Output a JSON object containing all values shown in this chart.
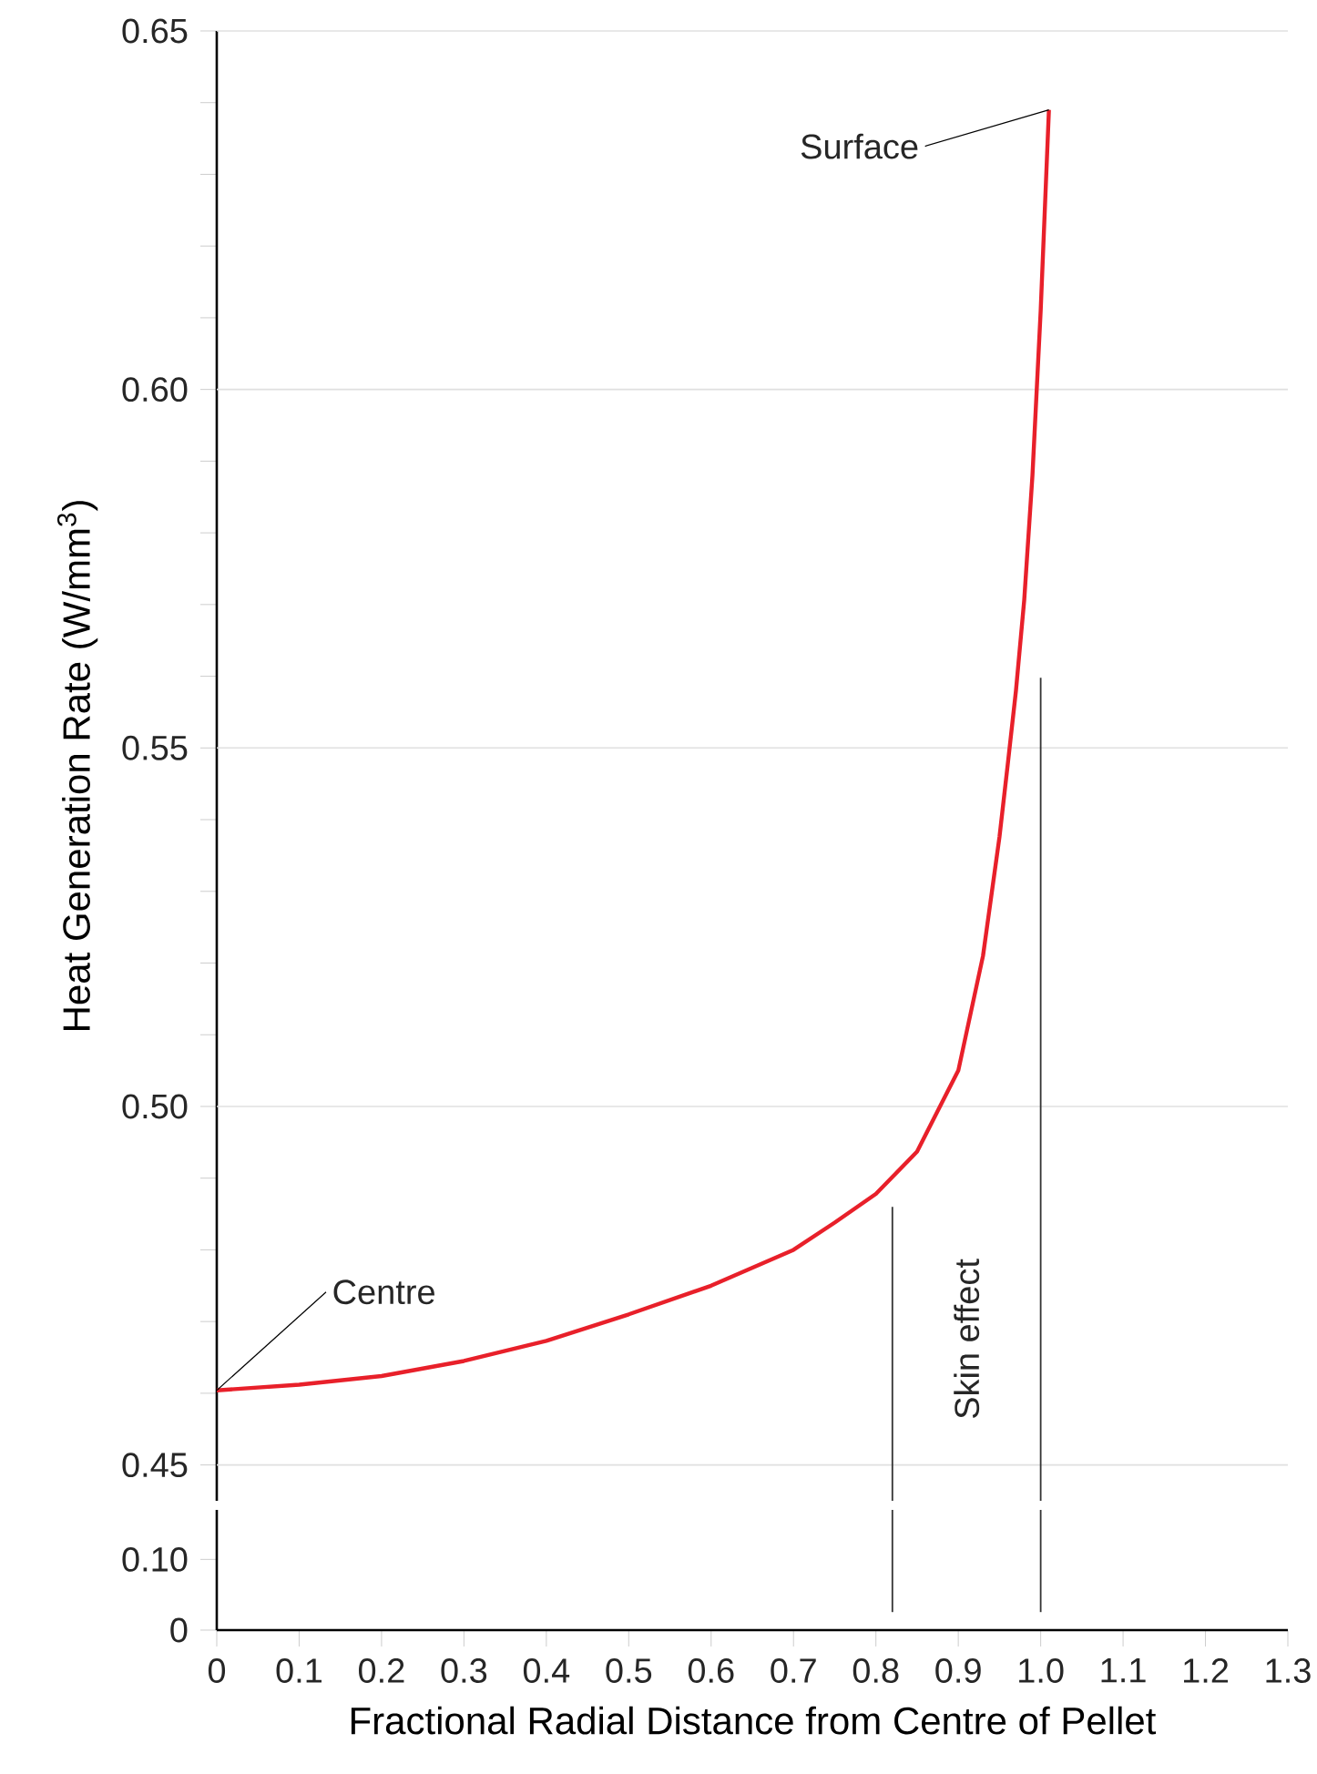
{
  "chart_data": [
    {
      "type": "line",
      "ylabel": "Heat Generation Rate (W/mm$^{3}$)",
      "series": [
        {
          "color": "#e8202a",
          "x": [
            0,
            0.1,
            0.2,
            0.3,
            0.4,
            0.5,
            0.6,
            0.7,
            0.75,
            0.8,
            0.85,
            0.88,
            0.9,
            0.93,
            0.95,
            0.96,
            0.97,
            0.98,
            0.99,
            1.0,
            1.01
          ],
          "values": [
            0.4604,
            0.4612,
            0.4624,
            0.4645,
            0.4673,
            0.471,
            0.475,
            0.48,
            0.4838,
            0.4878,
            0.4937,
            0.5005,
            0.505,
            0.521,
            0.5376,
            0.5477,
            0.558,
            0.5706,
            0.588,
            0.611,
            0.639
          ]
        }
      ],
      "xlim": [
        0,
        1.3
      ],
      "ylim": [
        0.445,
        0.65
      ],
      "yticks": [
        0.45,
        {
          "value": 0.46,
          "label": null
        },
        {
          "value": 0.47,
          "label": null
        },
        {
          "value": 0.48,
          "label": null
        },
        {
          "value": 0.49,
          "label": null
        },
        {
          "value": 0.5,
          "label": "0.50"
        },
        {
          "value": 0.51,
          "label": null
        },
        {
          "value": 0.52,
          "label": null
        },
        {
          "value": 0.53,
          "label": null
        },
        {
          "value": 0.54,
          "label": null
        },
        0.55,
        {
          "value": 0.56,
          "label": null
        },
        {
          "value": 0.57,
          "label": null
        },
        {
          "value": 0.58,
          "label": null
        },
        {
          "value": 0.59,
          "label": null
        },
        {
          "value": 0.6,
          "label": "0.60"
        },
        {
          "value": 0.61,
          "label": null
        },
        {
          "value": 0.62,
          "label": null
        },
        {
          "value": 0.63,
          "label": null
        },
        {
          "value": 0.64,
          "label": null
        },
        0.65
      ],
      "grid": "y",
      "tick_labels": "y",
      "line_style": "solid",
      "annotations": [
        {
          "text": "Surface",
          "x": 1.01,
          "y": 0.639
        },
        {
          "text": "Centre",
          "x": 0,
          "y": 0.4604
        },
        "Skin effect"
      ],
      "ref_lines": [
        {
          "axis": "x",
          "value": 0.82,
          "color": "#333333"
        },
        {
          "axis": "x",
          "value": 1.0,
          "color": "#333333"
        }
      ]
    },
    {
      "type": "line",
      "xlabel": "Fractional Radial Distance from Centre of Pellet",
      "xlim": [
        0,
        1.3
      ],
      "ylim": [
        0,
        0.17
      ],
      "xticks": [
        0,
        0.1,
        0.2,
        0.3,
        0.4,
        0.5,
        0.6,
        0.7,
        0.8,
        0.9,
        {
          "value": 1.0,
          "label": "1.0"
        },
        1.1,
        1.2,
        1.3
      ],
      "yticks": [
        0,
        {
          "value": 0.1,
          "label": "0.10"
        }
      ],
      "ref_lines": [
        {
          "axis": "x",
          "value": 0.82,
          "color": "#333333"
        },
        {
          "axis": "x",
          "value": 1.0,
          "color": "#333333"
        }
      ]
    }
  ]
}
